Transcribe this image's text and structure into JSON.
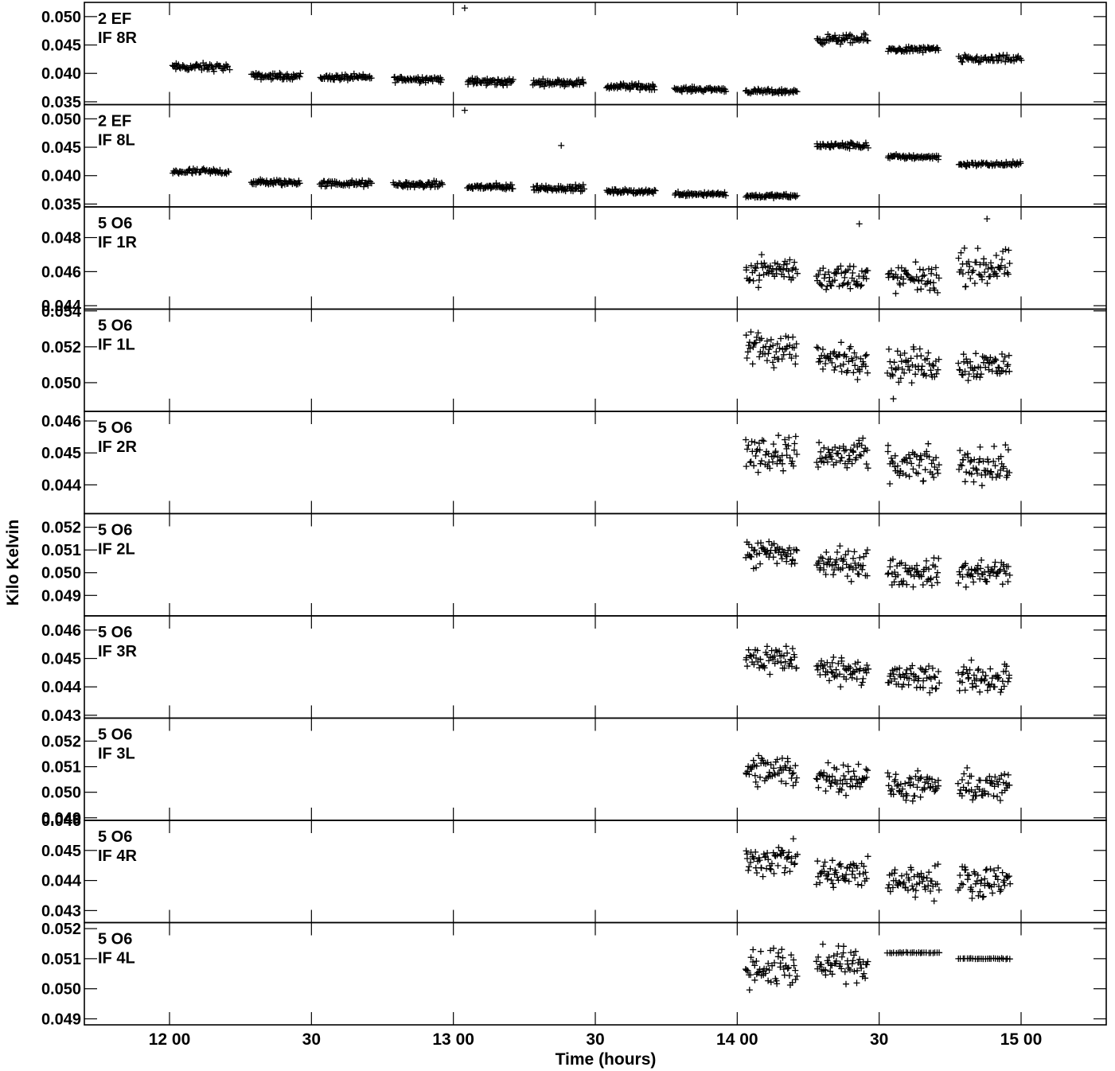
{
  "chart_data": {
    "type": "scatter",
    "xlabel": "Time (hours)",
    "ylabel": "Kilo Kelvin",
    "x_range_hours": [
      11.7,
      15.3
    ],
    "x_ticks": [
      {
        "value": 12.0,
        "label": "12 00"
      },
      {
        "value": 12.5,
        "label": "30"
      },
      {
        "value": 13.0,
        "label": "13 00"
      },
      {
        "value": 13.5,
        "label": "30"
      },
      {
        "value": 14.0,
        "label": "14 00"
      },
      {
        "value": 14.5,
        "label": "30"
      },
      {
        "value": 15.0,
        "label": "15 00"
      }
    ],
    "panels": [
      {
        "label1": "2 EF",
        "label2": "IF 8R",
        "ylim": [
          0.0345,
          0.0525
        ],
        "yticks": [
          "0.035",
          "0.040",
          "0.045",
          "0.050"
        ],
        "scans": [
          [
            12.01,
            12.21,
            0.0411,
            0.001
          ],
          [
            12.29,
            12.46,
            0.0395,
            0.0008
          ],
          [
            12.53,
            12.71,
            0.0393,
            0.0008
          ],
          [
            12.79,
            12.96,
            0.039,
            0.0008
          ],
          [
            13.05,
            13.21,
            0.0385,
            0.001
          ],
          [
            13.28,
            13.46,
            0.0384,
            0.0008
          ],
          [
            13.54,
            13.71,
            0.0377,
            0.0008
          ],
          [
            13.78,
            13.96,
            0.0372,
            0.0006
          ],
          [
            14.03,
            14.21,
            0.0368,
            0.0006
          ],
          [
            14.28,
            14.46,
            0.046,
            0.0012
          ],
          [
            14.53,
            14.71,
            0.0442,
            0.0008
          ],
          [
            14.78,
            15.0,
            0.0425,
            0.001
          ]
        ],
        "outliers": [
          [
            13.04,
            0.0515
          ]
        ]
      },
      {
        "label1": "2 EF",
        "label2": "IF 8L",
        "ylim": [
          0.0345,
          0.0525
        ],
        "yticks": [
          "0.035",
          "0.040",
          "0.045",
          "0.050"
        ],
        "scans": [
          [
            12.01,
            12.21,
            0.0407,
            0.0008
          ],
          [
            12.29,
            12.46,
            0.0388,
            0.0008
          ],
          [
            12.53,
            12.71,
            0.0386,
            0.0008
          ],
          [
            12.79,
            12.96,
            0.0384,
            0.0008
          ],
          [
            13.05,
            13.21,
            0.038,
            0.0008
          ],
          [
            13.28,
            13.46,
            0.0378,
            0.0008
          ],
          [
            13.54,
            13.71,
            0.0372,
            0.0006
          ],
          [
            13.78,
            13.96,
            0.0368,
            0.0006
          ],
          [
            14.03,
            14.21,
            0.0364,
            0.0005
          ],
          [
            14.28,
            14.46,
            0.0453,
            0.0008
          ],
          [
            14.53,
            14.71,
            0.0433,
            0.0006
          ],
          [
            14.78,
            15.0,
            0.042,
            0.0006
          ]
        ],
        "outliers": [
          [
            13.04,
            0.0515
          ],
          [
            13.38,
            0.0453
          ]
        ]
      },
      {
        "label1": "5 O6",
        "label2": "IF 1R",
        "ylim": [
          0.0438,
          0.0498
        ],
        "yticks": [
          "0.044",
          "0.046",
          "0.048"
        ],
        "scans": [
          [
            14.03,
            14.21,
            0.0461,
            0.0012
          ],
          [
            14.28,
            14.46,
            0.0457,
            0.0012
          ],
          [
            14.53,
            14.71,
            0.0456,
            0.0012
          ],
          [
            14.78,
            14.96,
            0.0462,
            0.0015
          ]
        ],
        "outliers": [
          [
            14.43,
            0.0488
          ],
          [
            14.88,
            0.0491
          ]
        ]
      },
      {
        "label1": "5 O6",
        "label2": "IF 1L",
        "ylim": [
          0.0484,
          0.0541
        ],
        "yticks": [
          "0.050",
          "0.052",
          "0.054"
        ],
        "scans": [
          [
            14.03,
            14.21,
            0.0519,
            0.0015
          ],
          [
            14.28,
            14.46,
            0.0513,
            0.0013
          ],
          [
            14.53,
            14.71,
            0.051,
            0.0014
          ],
          [
            14.78,
            14.96,
            0.051,
            0.0013
          ]
        ],
        "outliers": [
          [
            14.55,
            0.0491
          ]
        ]
      },
      {
        "label1": "5 O6",
        "label2": "IF 2R",
        "ylim": [
          0.0431,
          0.0463
        ],
        "yticks": [
          "0.044",
          "0.045",
          "0.046"
        ],
        "scans": [
          [
            14.03,
            14.21,
            0.045,
            0.0008
          ],
          [
            14.28,
            14.46,
            0.0449,
            0.0008
          ],
          [
            14.53,
            14.71,
            0.0446,
            0.0008
          ],
          [
            14.78,
            14.96,
            0.0446,
            0.0008
          ]
        ],
        "outliers": []
      },
      {
        "label1": "5 O6",
        "label2": "IF 2L",
        "ylim": [
          0.0481,
          0.0526
        ],
        "yticks": [
          "0.049",
          "0.050",
          "0.051",
          "0.052"
        ],
        "scans": [
          [
            14.03,
            14.21,
            0.0508,
            0.001
          ],
          [
            14.28,
            14.46,
            0.0504,
            0.001
          ],
          [
            14.53,
            14.71,
            0.05,
            0.0009
          ],
          [
            14.78,
            14.96,
            0.05,
            0.0009
          ]
        ],
        "outliers": []
      },
      {
        "label1": "5 O6",
        "label2": "IF 3R",
        "ylim": [
          0.0429,
          0.0465
        ],
        "yticks": [
          "0.043",
          "0.044",
          "0.045",
          "0.046"
        ],
        "scans": [
          [
            14.03,
            14.21,
            0.045,
            0.0008
          ],
          [
            14.28,
            14.46,
            0.0446,
            0.0007
          ],
          [
            14.53,
            14.71,
            0.0443,
            0.0008
          ],
          [
            14.78,
            14.96,
            0.0443,
            0.0008
          ]
        ],
        "outliers": []
      },
      {
        "label1": "5 O6",
        "label2": "IF 3L",
        "ylim": [
          0.0489,
          0.0529
        ],
        "yticks": [
          "0.049",
          "0.050",
          "0.051",
          "0.052"
        ],
        "scans": [
          [
            14.03,
            14.21,
            0.0508,
            0.001
          ],
          [
            14.28,
            14.46,
            0.0506,
            0.0009
          ],
          [
            14.53,
            14.71,
            0.0502,
            0.0008
          ],
          [
            14.78,
            14.96,
            0.0502,
            0.0009
          ]
        ],
        "outliers": []
      },
      {
        "label1": "5 O6",
        "label2": "IF 4R",
        "ylim": [
          0.0426,
          0.046
        ],
        "yticks": [
          "0.043",
          "0.044",
          "0.045",
          "0.046"
        ],
        "scans": [
          [
            14.03,
            14.21,
            0.0447,
            0.0008
          ],
          [
            14.28,
            14.46,
            0.0442,
            0.0008
          ],
          [
            14.53,
            14.71,
            0.044,
            0.0008
          ],
          [
            14.78,
            14.96,
            0.044,
            0.0008
          ]
        ],
        "outliers": []
      },
      {
        "label1": "5 O6",
        "label2": "IF 4L",
        "ylim": [
          0.0488,
          0.0522
        ],
        "yticks": [
          "0.049",
          "0.050",
          "0.051",
          "0.052"
        ],
        "scans": [
          [
            14.03,
            14.21,
            0.0507,
            0.001
          ],
          [
            14.28,
            14.46,
            0.0508,
            0.0008
          ],
          [
            14.53,
            14.71,
            0.0512,
            3e-05
          ],
          [
            14.78,
            14.96,
            0.051,
            3e-05
          ]
        ],
        "outliers": []
      }
    ]
  }
}
